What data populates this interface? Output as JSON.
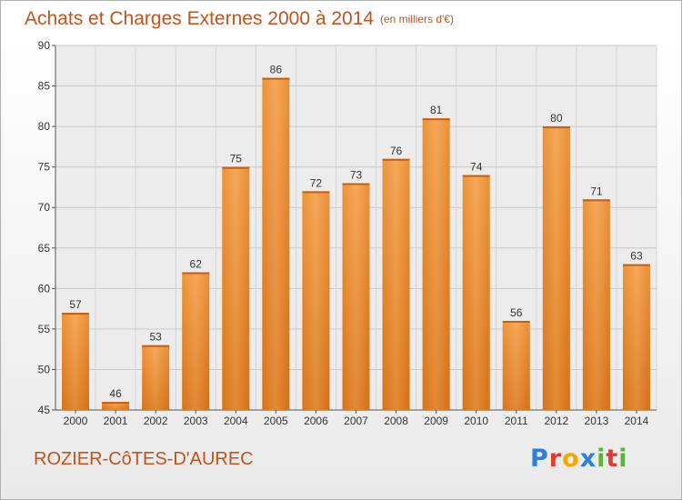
{
  "chart_data": {
    "type": "bar",
    "title": "Achats et Charges Externes 2000 à 2014",
    "unit_note": "(en milliers d'€)",
    "categories": [
      "2000",
      "2001",
      "2002",
      "2003",
      "2004",
      "2005",
      "2006",
      "2007",
      "2008",
      "2009",
      "2010",
      "2011",
      "2012",
      "2013",
      "2014"
    ],
    "values": [
      57,
      46,
      53,
      62,
      75,
      86,
      72,
      73,
      76,
      81,
      74,
      56,
      80,
      71,
      63
    ],
    "ylim": [
      45,
      90
    ],
    "yticks": [
      45,
      50,
      55,
      60,
      65,
      70,
      75,
      80,
      85,
      90
    ],
    "grid": true,
    "bar_color": "#f0922f",
    "xlabel": "",
    "ylabel": ""
  },
  "footer": {
    "place": "ROZIER-CôTES-D'AUREC",
    "logo_text": "Proxiti",
    "logo_letter_colors": [
      "#2e7fd6",
      "#e23b2e",
      "#f2a900",
      "#2e7fd6",
      "#5bb23d",
      "#e23b2e",
      "#5bb23d"
    ]
  }
}
